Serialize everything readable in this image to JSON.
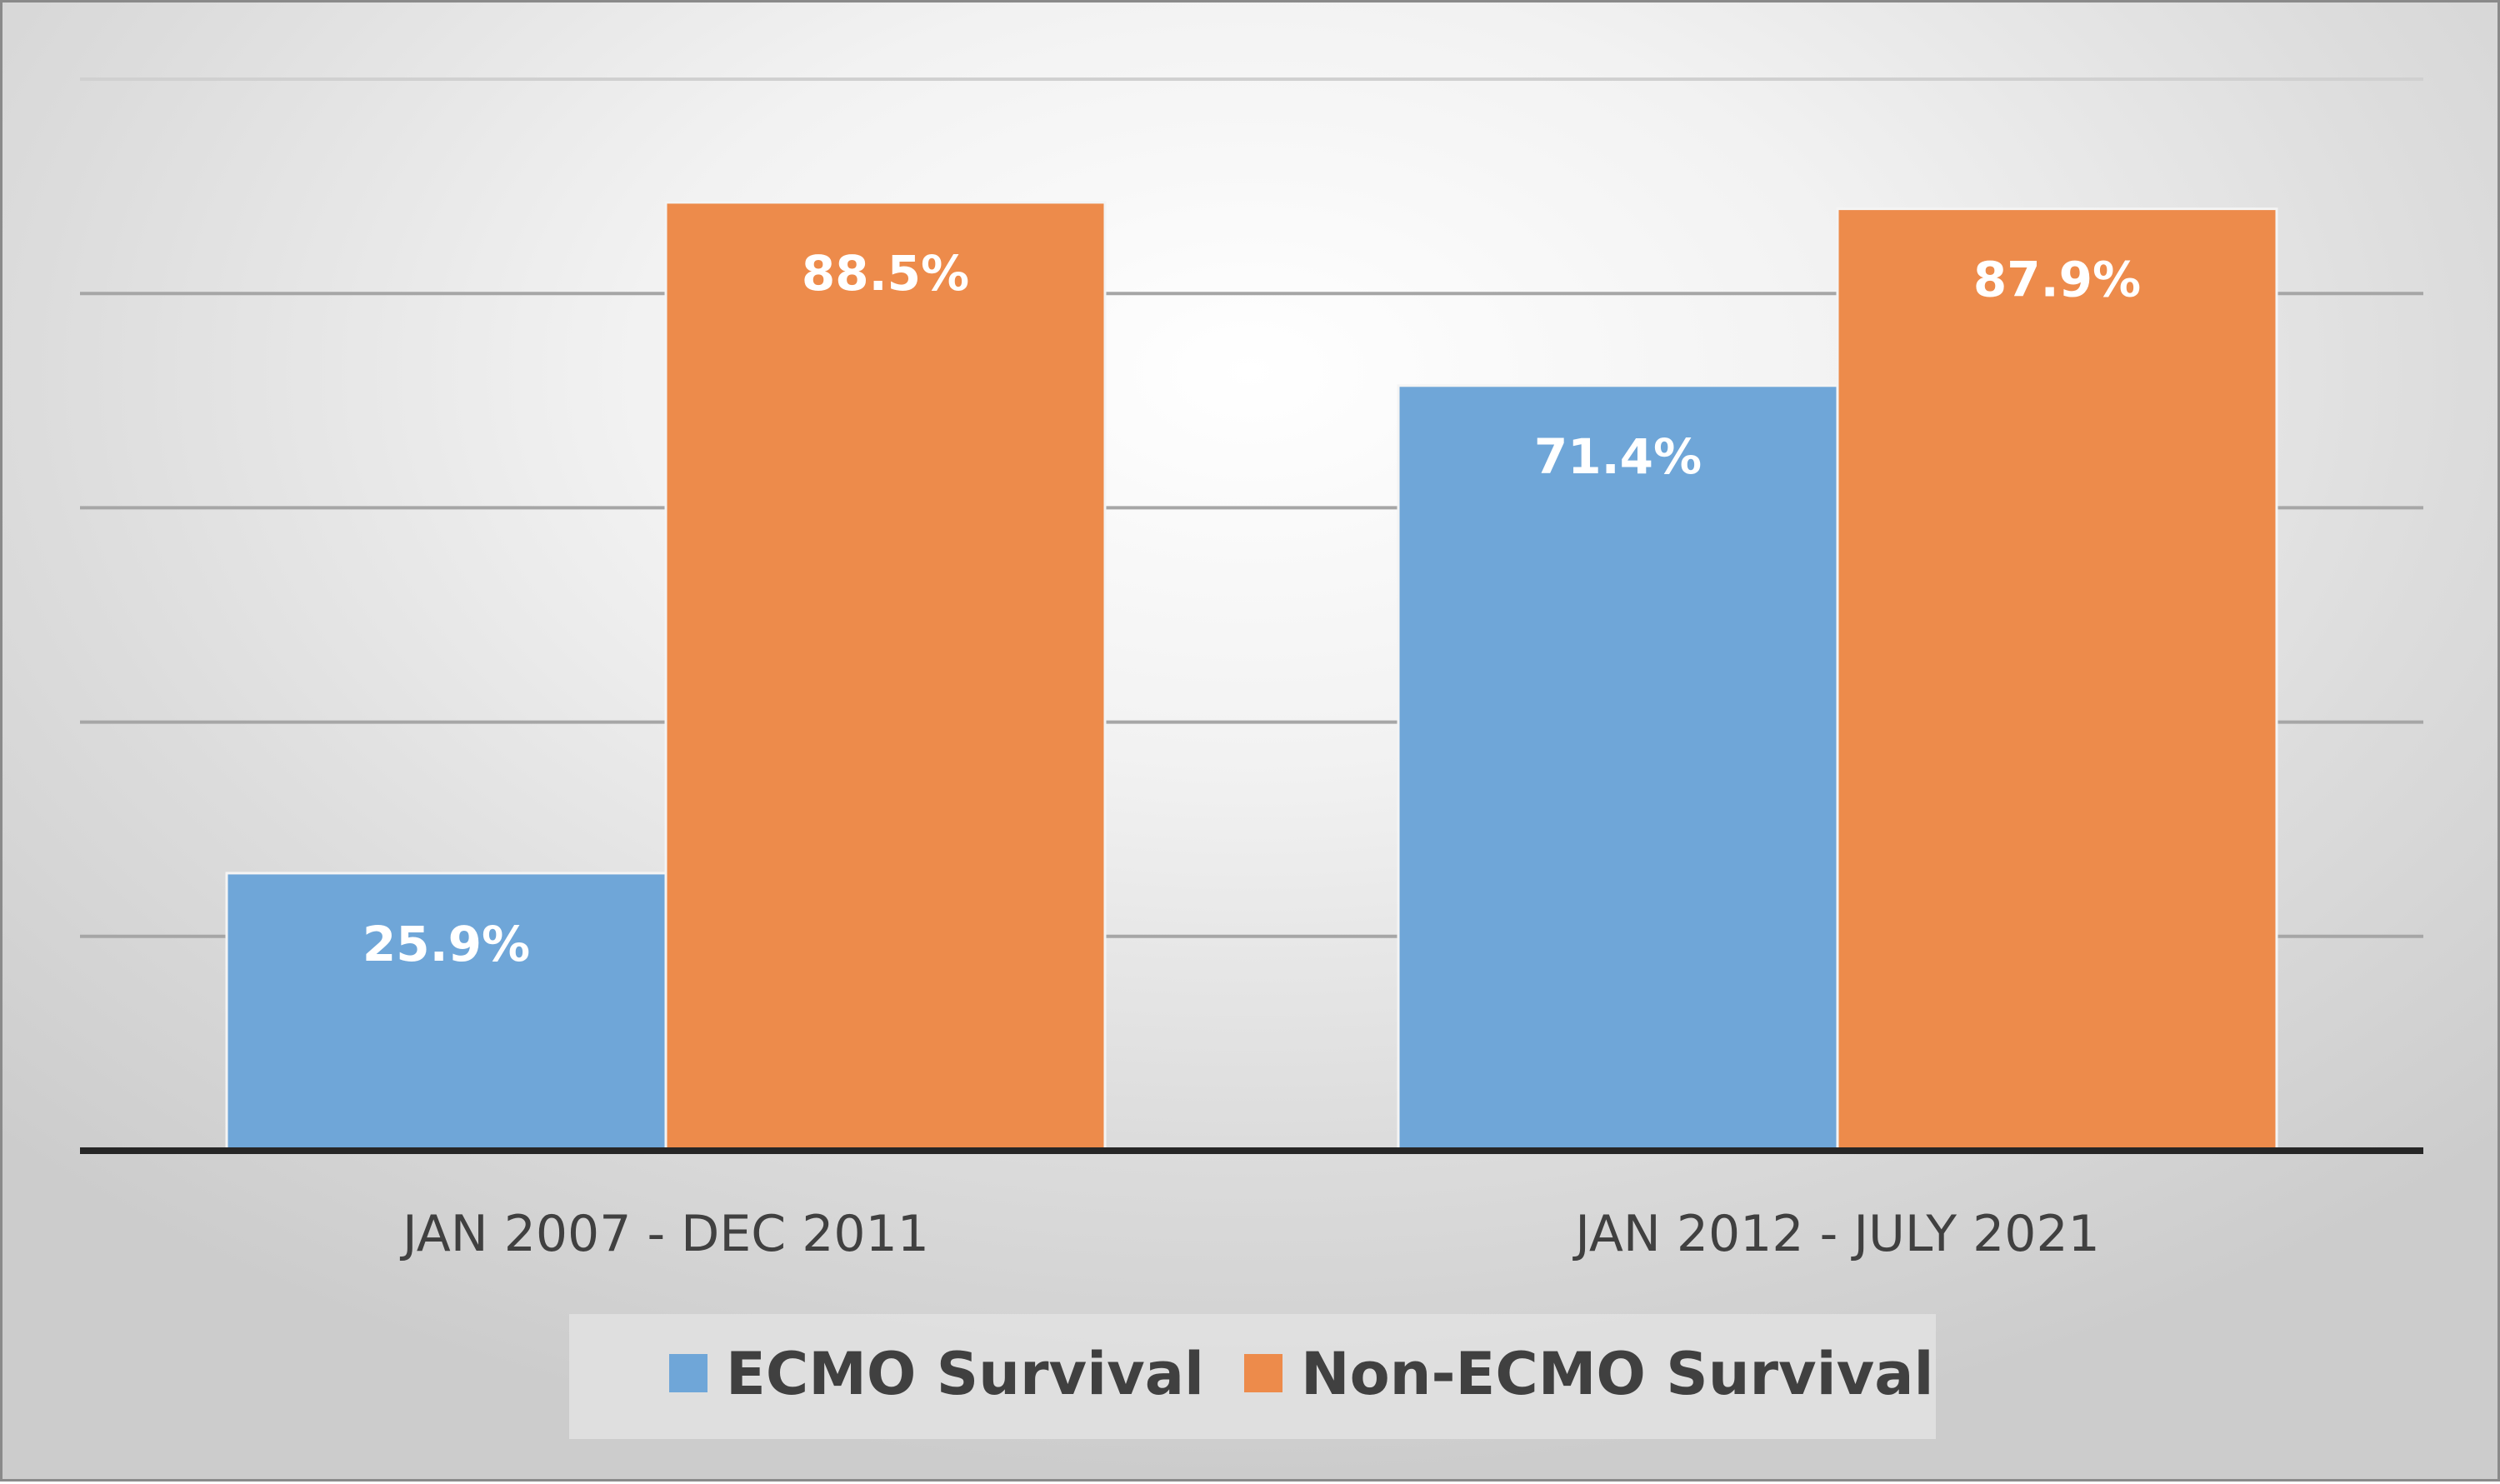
{
  "chart_data": {
    "type": "bar",
    "categories": [
      "JAN 2007 - DEC 2011",
      "JAN 2012 - JULY 2021"
    ],
    "series": [
      {
        "name": "ECMO Survival",
        "values": [
          25.9,
          71.4
        ],
        "labels": [
          "25.9%",
          "71.4%"
        ],
        "color": "#6fa6d8"
      },
      {
        "name": "Non-ECMO Survival",
        "values": [
          88.5,
          87.9
        ],
        "labels": [
          "88.5%",
          "87.9%"
        ],
        "color": "#ed8b4b"
      }
    ],
    "ylim": [
      0,
      100
    ],
    "y_gridlines": [
      20,
      40,
      60,
      80,
      100
    ],
    "grid": true,
    "legend": "bottom",
    "title": "",
    "xlabel": "",
    "ylabel": ""
  }
}
